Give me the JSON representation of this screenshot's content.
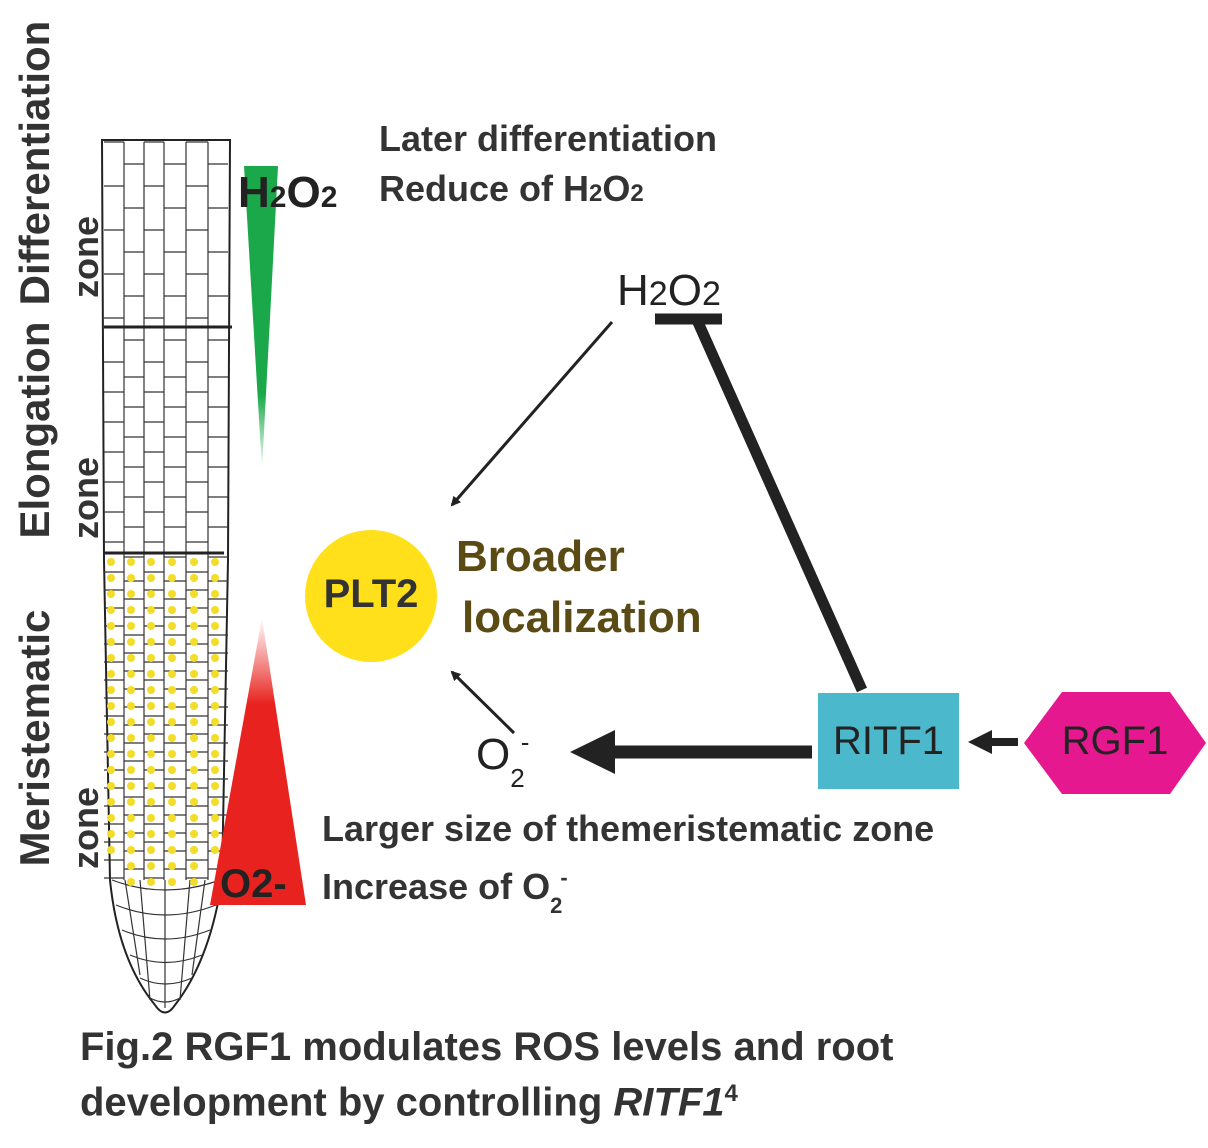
{
  "zones": {
    "differentiation": "Differentiation",
    "elongation": "Elongation",
    "meristematic": "Meristematic",
    "zone_word": "zone"
  },
  "gradient_labels": {
    "h2o2_base": "H",
    "h2o2_sub": "2",
    "h2o2_o": "O",
    "h2o2_sub2": "2",
    "o2_minus": "O2-"
  },
  "notes": {
    "later_differentiation": "Later differentiation",
    "reduce_of_prefix": "Reduce of H",
    "reduce_sub1": "2",
    "reduce_o": "O",
    "reduce_sub2": "2",
    "larger_size": "Larger size of themeristematic zone",
    "increase_of": "Increase of  O",
    "increase_sub": "2",
    "increase_sup": "-"
  },
  "pathway": {
    "h2o2_top": {
      "h": "H",
      "sub1": "2",
      "o": "O",
      "sub2": "2"
    },
    "plt2": "PLT2",
    "broader_line1": "Broader",
    "broader_line2": "localization",
    "superoxide": {
      "o": "O",
      "sub": "2",
      "sup": "-"
    },
    "ritf1": "RITF1",
    "rgf1": "RGF1"
  },
  "caption": {
    "line1": "Fig.2 RGF1 modulates ROS levels and root",
    "line2_prefix": "development by controlling ",
    "line2_gene": "RITF1",
    "line2_ref": "4"
  },
  "colors": {
    "h2o2_gradient": "#1aa84a",
    "o2_gradient": "#e8231f",
    "plt2_circle": "#ffe01a",
    "ritf1_box": "#4bb8cc",
    "rgf1_hexagon": "#e5188f",
    "broader_text": "#5a4a14",
    "cell_dots": "#f2dd2a"
  }
}
